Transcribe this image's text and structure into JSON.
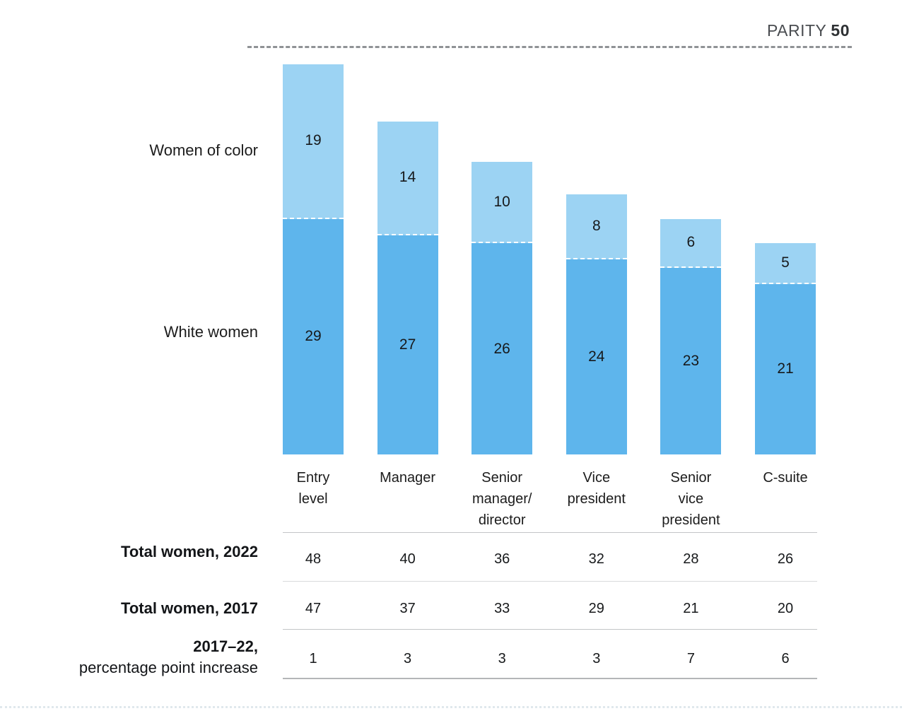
{
  "chart_data": {
    "type": "bar",
    "stacked": true,
    "title": "",
    "categories": [
      "Entry level",
      "Manager",
      "Senior manager/director",
      "Vice president",
      "Senior vice president",
      "C-suite"
    ],
    "category_label_lines": [
      [
        "Entry",
        "level"
      ],
      [
        "Manager"
      ],
      [
        "Senior",
        "manager/",
        "director"
      ],
      [
        "Vice",
        "president"
      ],
      [
        "Senior",
        "vice",
        "president"
      ],
      [
        "C-suite"
      ]
    ],
    "series": [
      {
        "name": "Women of color",
        "color": "#9CD3F3",
        "values": [
          19,
          14,
          10,
          8,
          6,
          5
        ]
      },
      {
        "name": "White women",
        "color": "#5EB5EC",
        "values": [
          29,
          27,
          26,
          24,
          23,
          21
        ]
      }
    ],
    "parity_line": {
      "label": "PARITY",
      "value": 50
    },
    "ylim": [
      0,
      50
    ],
    "grid": false,
    "legend_position": "left"
  },
  "table": {
    "rows": [
      {
        "label_bold": "Total women, 2022",
        "label_regular": "",
        "values": [
          "48",
          "40",
          "36",
          "32",
          "28",
          "26"
        ]
      },
      {
        "label_bold": "Total women, 2017",
        "label_regular": "",
        "values": [
          "47",
          "37",
          "33",
          "29",
          "21",
          "20"
        ]
      },
      {
        "label_bold": "2017–22,",
        "label_regular": "percentage point increase",
        "values": [
          "1",
          "3",
          "3",
          "3",
          "7",
          "6"
        ]
      }
    ]
  },
  "colors": {
    "women_of_color": "#9CD3F3",
    "white_women": "#5EB5EC",
    "parity_text": "#4A4D51",
    "dashed_line": "#8F9295",
    "separator": "#C3C5C7"
  }
}
